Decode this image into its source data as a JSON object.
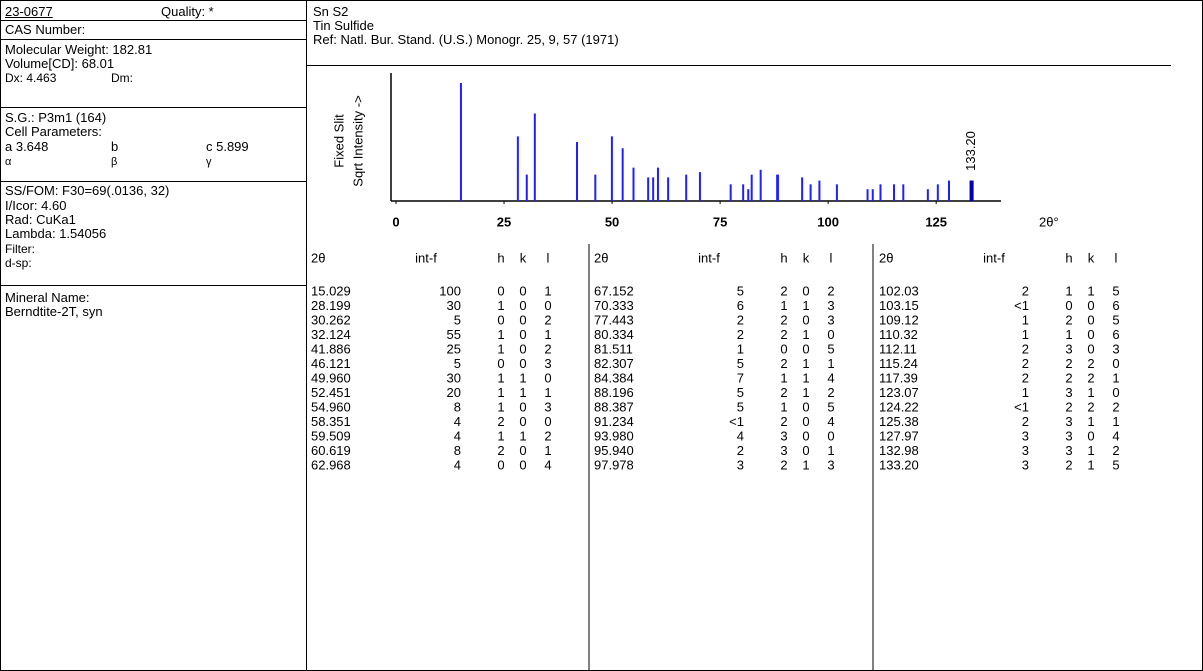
{
  "left": {
    "pdf_number": "23-0677",
    "quality": "Quality: *",
    "cas": "CAS Number:",
    "mol_weight": "Molecular Weight:  182.81",
    "volume": "Volume[CD]:     68.01",
    "dx": "Dx:  4.463",
    "dm": "Dm:",
    "sg": "S.G.: P3m1 (164)",
    "cell_title": "Cell Parameters:",
    "cell_a": "a  3.648",
    "cell_b": "b",
    "cell_c": "c  5.899",
    "alpha": "α",
    "beta": "β",
    "gamma": "γ",
    "ss_fom": "SS/FOM: F30=69(.0136, 32)",
    "icor": "I/Icor:   4.60",
    "rad": "Rad: CuKa1",
    "lambda": "Lambda: 1.54056",
    "filter": "Filter:",
    "dsp": "d-sp:",
    "mineral_title": "Mineral Name:",
    "mineral": "Berndtite-2T, syn"
  },
  "header": {
    "formula": "Sn S2",
    "name": "Tin Sulfide",
    "ref": "Ref:  Natl. Bur. Stand. (U.S.) Monogr. 25, 9, 57 (1971)"
  },
  "chart": {
    "type": "stick",
    "y_label": "Sqrt Intensity ->",
    "slit_label": "Fixed  Slit",
    "x_label": "2θ°",
    "xlim": [
      0,
      140
    ],
    "xticks": [
      0,
      25,
      50,
      75,
      100,
      125
    ],
    "ylim": [
      0,
      100
    ],
    "scale": "sqrt",
    "color": "#2020ff",
    "highlight_color": "#0000b0"
  },
  "table": {
    "headers": [
      "2θ",
      "int-f",
      "h",
      "k",
      "l"
    ],
    "groups": [
      [
        [
          "15.029",
          100,
          0,
          0,
          1
        ],
        [
          "28.199",
          30,
          1,
          0,
          0
        ],
        [
          "30.262",
          5,
          0,
          0,
          2
        ],
        [
          "32.124",
          55,
          1,
          0,
          1
        ],
        [
          "41.886",
          25,
          1,
          0,
          2
        ],
        [
          "46.121",
          5,
          0,
          0,
          3
        ],
        [
          "49.960",
          30,
          1,
          1,
          0
        ],
        [
          "52.451",
          20,
          1,
          1,
          1
        ],
        [
          "54.960",
          8,
          1,
          0,
          3
        ],
        [
          "58.351",
          4,
          2,
          0,
          0
        ],
        [
          "59.509",
          4,
          1,
          1,
          2
        ],
        [
          "60.619",
          8,
          2,
          0,
          1
        ],
        [
          "62.968",
          4,
          0,
          0,
          4
        ]
      ],
      [
        [
          "67.152",
          5,
          2,
          0,
          2
        ],
        [
          "70.333",
          6,
          1,
          1,
          3
        ],
        [
          "77.443",
          2,
          2,
          0,
          3
        ],
        [
          "80.334",
          2,
          2,
          1,
          0
        ],
        [
          "81.511",
          1,
          0,
          0,
          5
        ],
        [
          "82.307",
          5,
          2,
          1,
          1
        ],
        [
          "84.384",
          7,
          1,
          1,
          4
        ],
        [
          "88.196",
          5,
          2,
          1,
          2
        ],
        [
          "88.387",
          5,
          1,
          0,
          5
        ],
        [
          "91.234",
          "<1",
          2,
          0,
          4
        ],
        [
          "93.980",
          4,
          3,
          0,
          0
        ],
        [
          "95.940",
          2,
          3,
          0,
          1
        ],
        [
          "97.978",
          3,
          2,
          1,
          3
        ]
      ],
      [
        [
          "102.03",
          2,
          1,
          1,
          5
        ],
        [
          "103.15",
          "<1",
          0,
          0,
          6
        ],
        [
          "109.12",
          1,
          2,
          0,
          5
        ],
        [
          "110.32",
          1,
          1,
          0,
          6
        ],
        [
          "112.11",
          2,
          3,
          0,
          3
        ],
        [
          "115.24",
          2,
          2,
          2,
          0
        ],
        [
          "117.39",
          2,
          2,
          2,
          1
        ],
        [
          "123.07",
          1,
          3,
          1,
          0
        ],
        [
          "124.22",
          "<1",
          2,
          2,
          2
        ],
        [
          "125.38",
          2,
          3,
          1,
          1
        ],
        [
          "127.97",
          3,
          3,
          0,
          4
        ],
        [
          "132.98",
          3,
          3,
          1,
          2
        ],
        [
          "133.20",
          3,
          2,
          1,
          5
        ]
      ]
    ]
  }
}
